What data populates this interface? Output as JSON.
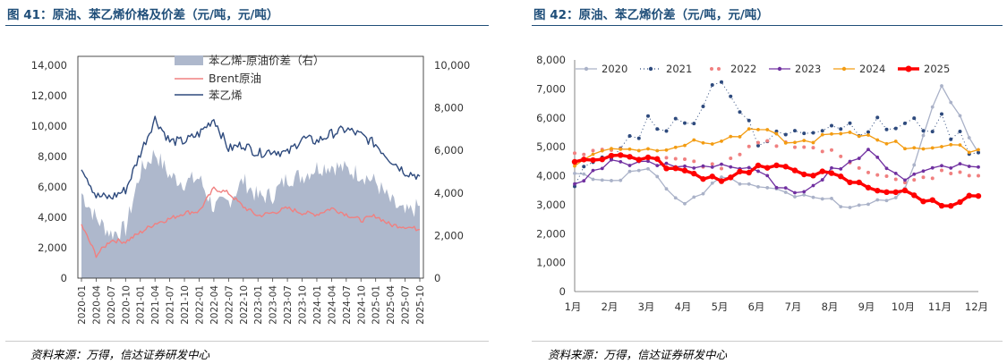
{
  "left_figure": {
    "caption": "图 41：原油、苯乙烯价格及价差（元/吨，元/吨）",
    "source": "资料来源：万得，信达证券研发中心"
  },
  "right_figure": {
    "caption": "图 42：原油、苯乙烯价差（元/吨，元/吨）",
    "source": "资料来源：万得，信达证券研发中心"
  },
  "colors": {
    "spread": "#aeb8cc",
    "brent": "#f08080",
    "styrene": "#2e4a7d",
    "s2020": "#aab2c8",
    "s2021": "#2e4a7d",
    "s2022": "#f08080",
    "s2023": "#7030a0",
    "s2024": "#f39c12",
    "s2025": "#ff0000",
    "title": "#1f4e79"
  },
  "chart_data": [
    {
      "type": "area",
      "title": "原油、苯乙烯价格及价差（元/吨，元/吨）",
      "xlabel": "",
      "ylabel": "",
      "ylim": [
        0,
        14000
      ],
      "ylim_right": [
        0,
        10000
      ],
      "yticks_left": [
        "0",
        "2,000",
        "4,000",
        "6,000",
        "8,000",
        "10,000",
        "12,000",
        "14,000"
      ],
      "yticks_right": [
        "0",
        "2,000",
        "4,000",
        "6,000",
        "8,000",
        "10,000"
      ],
      "categories": [
        "2020-01",
        "2020-04",
        "2020-07",
        "2020-10",
        "2021-01",
        "2021-04",
        "2021-07",
        "2021-10",
        "2022-01",
        "2022-04",
        "2022-07",
        "2022-10",
        "2023-01",
        "2023-04",
        "2023-07",
        "2023-10",
        "2024-01",
        "2024-04",
        "2024-07",
        "2024-10",
        "2025-01",
        "2025-04",
        "2025-07",
        "2025-10"
      ],
      "legend_position": "top-center",
      "series": [
        {
          "name": "苯乙烯-原油价差（右）",
          "axis": "right",
          "kind": "area",
          "values": [
            4000,
            2800,
            2100,
            2300,
            5000,
            5900,
            4800,
            4500,
            4700,
            3300,
            3600,
            4600,
            3800,
            3900,
            4700,
            4800,
            5200,
            5300,
            5100,
            4900,
            4500,
            3600,
            3000,
            3400
          ]
        },
        {
          "name": "Brent原油",
          "axis": "left",
          "kind": "line",
          "values": [
            3500,
            1500,
            2500,
            2400,
            3000,
            3600,
            3900,
            4300,
            4400,
            5900,
            5600,
            4700,
            4100,
            4300,
            4600,
            4300,
            4200,
            4600,
            4200,
            3800,
            4100,
            3500,
            3400,
            3200
          ]
        },
        {
          "name": "苯乙烯",
          "axis": "left",
          "kind": "line",
          "values": [
            7400,
            5400,
            5300,
            5800,
            8200,
            10500,
            9000,
            9000,
            9500,
            10500,
            8500,
            8800,
            8200,
            8400,
            8200,
            9200,
            9000,
            9500,
            9800,
            9400,
            8800,
            7800,
            7000,
            6700
          ]
        }
      ]
    },
    {
      "type": "line",
      "title": "原油、苯乙烯价差（元/吨，元/吨）",
      "xlabel": "",
      "ylabel": "",
      "ylim": [
        0,
        8000
      ],
      "yticks": [
        "0",
        "1,000",
        "2,000",
        "3,000",
        "4,000",
        "5,000",
        "6,000",
        "7,000",
        "8,000"
      ],
      "categories": [
        "1月",
        "2月",
        "3月",
        "4月",
        "5月",
        "6月",
        "7月",
        "8月",
        "9月",
        "10月",
        "11月",
        "12月"
      ],
      "legend_position": "top",
      "series": [
        {
          "name": "2020",
          "style": "solid-marker",
          "values": [
            4000,
            3800,
            4300,
            3000,
            3900,
            3600,
            3300,
            3100,
            2900,
            3500,
            7200,
            4800
          ]
        },
        {
          "name": "2021",
          "style": "dotted",
          "values": [
            3900,
            4600,
            5900,
            5700,
            7500,
            5000,
            5700,
            5800,
            5700,
            5700,
            5800,
            4800
          ]
        },
        {
          "name": "2022",
          "style": "dots",
          "values": [
            4800,
            4900,
            4600,
            4500,
            4300,
            5100,
            5100,
            4800,
            4200,
            3700,
            4100,
            4000
          ]
        },
        {
          "name": "2023",
          "style": "solid-marker",
          "values": [
            3700,
            4500,
            4400,
            4300,
            4400,
            4100,
            3300,
            4200,
            4800,
            3900,
            4400,
            4300
          ]
        },
        {
          "name": "2024",
          "style": "solid-marker",
          "values": [
            4400,
            5000,
            4900,
            5100,
            5200,
            5600,
            5100,
            5400,
            5400,
            5000,
            5000,
            4900
          ]
        },
        {
          "name": "2025",
          "style": "thick-marker",
          "values": [
            4500,
            4700,
            4600,
            4100,
            3900,
            4300,
            4200,
            4000,
            3600,
            3400,
            3000,
            3300
          ]
        }
      ]
    }
  ]
}
